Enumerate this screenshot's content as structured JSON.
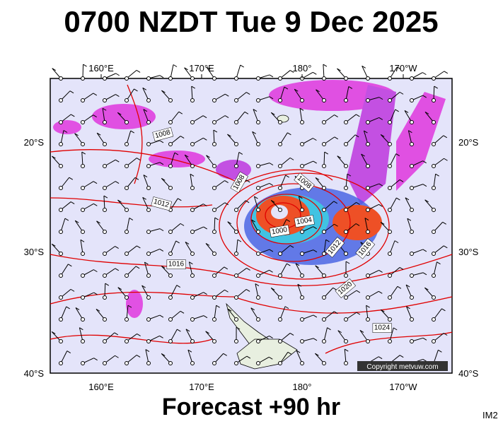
{
  "title": "0700 NZDT Tue 9 Dec 2025",
  "forecast": "Forecast +90 hr",
  "image_id": "IM2",
  "copyright": "Copyright metvuw.com",
  "longitude_labels_top": [
    "160°E",
    "170°E",
    "180°",
    "170°W"
  ],
  "longitude_labels_bottom": [
    "160°E",
    "170°E",
    "180°",
    "170°W"
  ],
  "latitude_labels_left": [
    "20°S",
    "30°S",
    "40°S"
  ],
  "latitude_labels_right": [
    "20°S",
    "30°S",
    "40°S"
  ],
  "isobar_labels": [
    1008,
    1008,
    1008,
    1012,
    1000,
    1004,
    1012,
    1016,
    1016,
    1020,
    1024
  ]
}
